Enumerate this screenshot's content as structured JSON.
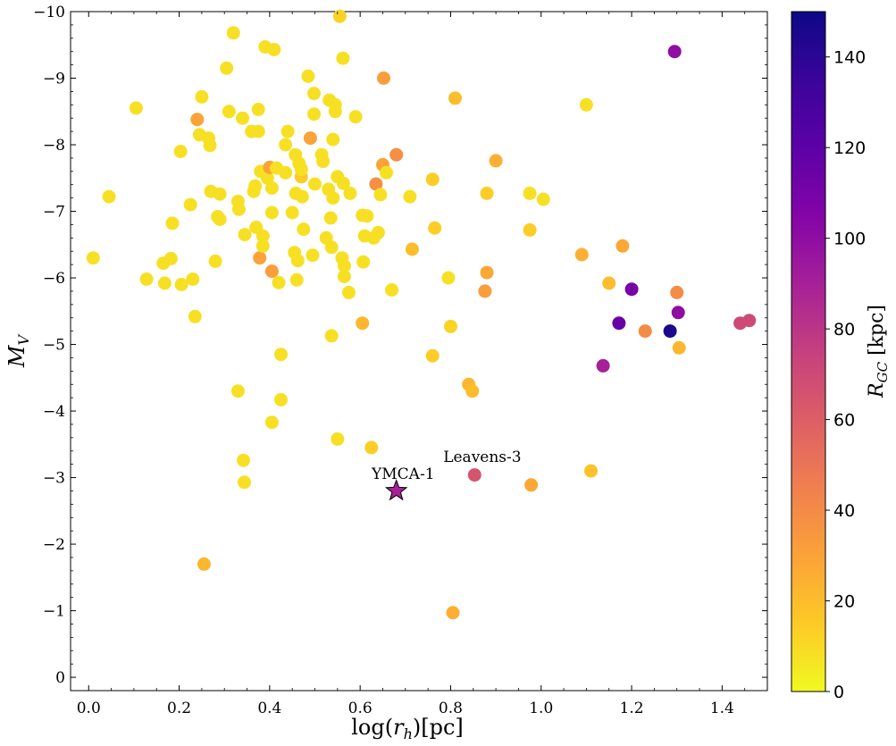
{
  "chart_data": {
    "type": "scatter",
    "xlabel_main": "log(",
    "xlabel_var": "r",
    "xlabel_sub": "h",
    "xlabel_tail": ")[pc]",
    "ylabel_var": "M",
    "ylabel_sub": "V",
    "xlim": [
      -0.04,
      1.5
    ],
    "ylim": [
      -10,
      0.2
    ],
    "y_inverted": true,
    "x_ticks": [
      0.0,
      0.2,
      0.4,
      0.6,
      0.8,
      1.0,
      1.2,
      1.4
    ],
    "x_tick_labels": [
      "0.0",
      "0.2",
      "0.4",
      "0.6",
      "0.8",
      "1.0",
      "1.2",
      "1.4"
    ],
    "y_ticks": [
      -10,
      -9,
      -8,
      -7,
      -6,
      -5,
      -4,
      -3,
      -2,
      -1,
      0
    ],
    "y_tick_labels": [
      "−10",
      "−9",
      "−8",
      "−7",
      "−6",
      "−5",
      "−4",
      "−3",
      "−2",
      "−1",
      "0"
    ],
    "colorbar": {
      "label_var": "R",
      "label_sub": "GC",
      "label_unit": " [kpc]",
      "min": 0,
      "max": 150,
      "ticks": [
        0,
        20,
        40,
        60,
        80,
        100,
        120,
        140
      ],
      "tick_labels": [
        "0",
        "20",
        "40",
        "60",
        "80",
        "100",
        "120",
        "140"
      ],
      "colormap": "plasma"
    },
    "points": [
      [
        0.01,
        -6.3,
        8
      ],
      [
        0.045,
        -7.22,
        8
      ],
      [
        0.105,
        -8.55,
        8
      ],
      [
        0.128,
        -5.98,
        8
      ],
      [
        0.165,
        -6.22,
        8
      ],
      [
        0.168,
        -5.92,
        8
      ],
      [
        0.182,
        -6.29,
        8
      ],
      [
        0.185,
        -6.82,
        8
      ],
      [
        0.203,
        -7.9,
        8
      ],
      [
        0.205,
        -5.9,
        8
      ],
      [
        0.225,
        -7.1,
        8
      ],
      [
        0.23,
        -5.98,
        8
      ],
      [
        0.235,
        -5.42,
        8
      ],
      [
        0.24,
        -8.38,
        30
      ],
      [
        0.245,
        -8.15,
        8
      ],
      [
        0.25,
        -8.72,
        8
      ],
      [
        0.255,
        -1.7,
        22
      ],
      [
        0.265,
        -8.1,
        8
      ],
      [
        0.268,
        -7.99,
        8
      ],
      [
        0.27,
        -7.3,
        8
      ],
      [
        0.28,
        -6.25,
        8
      ],
      [
        0.285,
        -6.92,
        8
      ],
      [
        0.29,
        -7.26,
        8
      ],
      [
        0.29,
        -6.88,
        8
      ],
      [
        0.305,
        -9.15,
        8
      ],
      [
        0.31,
        -8.5,
        8
      ],
      [
        0.32,
        -9.68,
        8
      ],
      [
        0.33,
        -7.15,
        8
      ],
      [
        0.33,
        -4.3,
        8
      ],
      [
        0.332,
        -7.03,
        8
      ],
      [
        0.34,
        -8.4,
        8
      ],
      [
        0.342,
        -3.26,
        8
      ],
      [
        0.344,
        -2.93,
        8
      ],
      [
        0.345,
        -6.65,
        8
      ],
      [
        0.36,
        -8.2,
        8
      ],
      [
        0.365,
        -7.3,
        8
      ],
      [
        0.368,
        -7.38,
        8
      ],
      [
        0.37,
        -6.76,
        8
      ],
      [
        0.375,
        -8.53,
        8
      ],
      [
        0.375,
        -8.2,
        8
      ],
      [
        0.378,
        -6.3,
        30
      ],
      [
        0.38,
        -7.6,
        8
      ],
      [
        0.385,
        -6.48,
        8
      ],
      [
        0.385,
        -6.63,
        8
      ],
      [
        0.39,
        -9.47,
        8
      ],
      [
        0.395,
        -7.5,
        8
      ],
      [
        0.4,
        -7.66,
        30
      ],
      [
        0.405,
        -7.35,
        8
      ],
      [
        0.405,
        -6.98,
        8
      ],
      [
        0.405,
        -6.1,
        32
      ],
      [
        0.405,
        -3.83,
        8
      ],
      [
        0.41,
        -9.43,
        8
      ],
      [
        0.415,
        -7.65,
        8
      ],
      [
        0.42,
        -5.93,
        8
      ],
      [
        0.425,
        -4.85,
        8
      ],
      [
        0.425,
        -4.17,
        8
      ],
      [
        0.435,
        -7.58,
        8
      ],
      [
        0.435,
        -8.0,
        8
      ],
      [
        0.44,
        -8.2,
        8
      ],
      [
        0.45,
        -6.98,
        8
      ],
      [
        0.455,
        -6.38,
        8
      ],
      [
        0.457,
        -7.85,
        8
      ],
      [
        0.458,
        -7.27,
        8
      ],
      [
        0.46,
        -5.97,
        8
      ],
      [
        0.462,
        -6.26,
        8
      ],
      [
        0.465,
        -7.72,
        8
      ],
      [
        0.47,
        -7.52,
        15
      ],
      [
        0.47,
        -7.63,
        8
      ],
      [
        0.472,
        -7.22,
        8
      ],
      [
        0.475,
        -6.73,
        8
      ],
      [
        0.485,
        -9.03,
        8
      ],
      [
        0.49,
        -8.1,
        30
      ],
      [
        0.495,
        -6.34,
        8
      ],
      [
        0.498,
        -8.46,
        8
      ],
      [
        0.498,
        -8.77,
        8
      ],
      [
        0.5,
        -7.41,
        8
      ],
      [
        0.515,
        -7.85,
        8
      ],
      [
        0.518,
        -7.75,
        8
      ],
      [
        0.525,
        -6.6,
        8
      ],
      [
        0.53,
        -7.33,
        8
      ],
      [
        0.532,
        -8.67,
        8
      ],
      [
        0.535,
        -6.9,
        8
      ],
      [
        0.537,
        -6.46,
        8
      ],
      [
        0.537,
        -5.13,
        8
      ],
      [
        0.54,
        -7.2,
        8
      ],
      [
        0.54,
        -8.08,
        8
      ],
      [
        0.545,
        -8.6,
        8
      ],
      [
        0.545,
        -8.5,
        8
      ],
      [
        0.55,
        -3.58,
        8
      ],
      [
        0.55,
        -7.52,
        8
      ],
      [
        0.555,
        -9.93,
        12
      ],
      [
        0.56,
        -6.3,
        8
      ],
      [
        0.562,
        -9.3,
        8
      ],
      [
        0.563,
        -7.42,
        8
      ],
      [
        0.565,
        -6.18,
        8
      ],
      [
        0.565,
        -6.02,
        8
      ],
      [
        0.575,
        -5.78,
        8
      ],
      [
        0.578,
        -7.27,
        8
      ],
      [
        0.59,
        -8.42,
        8
      ],
      [
        0.605,
        -6.94,
        8
      ],
      [
        0.605,
        -5.32,
        22
      ],
      [
        0.607,
        -6.24,
        8
      ],
      [
        0.61,
        -6.63,
        8
      ],
      [
        0.615,
        -6.93,
        8
      ],
      [
        0.625,
        -3.45,
        14
      ],
      [
        0.63,
        -6.6,
        8
      ],
      [
        0.635,
        -7.41,
        38
      ],
      [
        0.64,
        -6.68,
        8
      ],
      [
        0.645,
        -7.25,
        8
      ],
      [
        0.65,
        -7.7,
        30
      ],
      [
        0.652,
        -9.0,
        32
      ],
      [
        0.658,
        -7.58,
        8
      ],
      [
        0.67,
        -5.82,
        8
      ],
      [
        0.68,
        -7.85,
        38
      ],
      [
        0.71,
        -7.22,
        8
      ],
      [
        0.715,
        -6.43,
        20
      ],
      [
        0.76,
        -7.48,
        14
      ],
      [
        0.76,
        -4.83,
        14
      ],
      [
        0.765,
        -6.75,
        14
      ],
      [
        0.795,
        -6.0,
        8
      ],
      [
        0.8,
        -5.27,
        12
      ],
      [
        0.805,
        -0.97,
        25
      ],
      [
        0.81,
        -8.7,
        20
      ],
      [
        0.84,
        -4.4,
        22
      ],
      [
        0.848,
        -4.3,
        20
      ],
      [
        0.876,
        -5.8,
        32
      ],
      [
        0.88,
        -6.08,
        28
      ],
      [
        0.88,
        -7.27,
        14
      ],
      [
        0.9,
        -7.76,
        25
      ],
      [
        0.975,
        -7.27,
        8
      ],
      [
        0.975,
        -6.72,
        14
      ],
      [
        0.978,
        -2.89,
        28
      ],
      [
        1.005,
        -7.18,
        8
      ],
      [
        1.09,
        -6.35,
        25
      ],
      [
        1.1,
        -8.6,
        8
      ],
      [
        1.11,
        -3.1,
        18
      ],
      [
        1.15,
        -5.92,
        20
      ],
      [
        1.18,
        -6.48,
        28
      ],
      [
        1.23,
        -5.2,
        40
      ],
      [
        1.305,
        -4.95,
        22
      ],
      [
        1.3,
        -5.78,
        40
      ],
      [
        1.137,
        -4.68,
        90
      ],
      [
        1.172,
        -5.32,
        115
      ],
      [
        1.2,
        -5.83,
        110
      ],
      [
        1.295,
        -9.4,
        100
      ],
      [
        1.303,
        -5.48,
        100
      ],
      [
        1.285,
        -5.2,
        145
      ],
      [
        1.44,
        -5.32,
        70
      ],
      [
        1.46,
        -5.36,
        70
      ],
      [
        0.853,
        -3.04,
        65
      ]
    ],
    "highlight": {
      "name": "YMCA-1",
      "x": 0.68,
      "y": -2.8,
      "marker": "star",
      "color": "#a62098"
    },
    "annotations": [
      {
        "text": "YMCA-1",
        "x": 0.695,
        "y": -3.05
      },
      {
        "text": "Leavens-3",
        "x": 0.87,
        "y": -3.3
      }
    ]
  }
}
